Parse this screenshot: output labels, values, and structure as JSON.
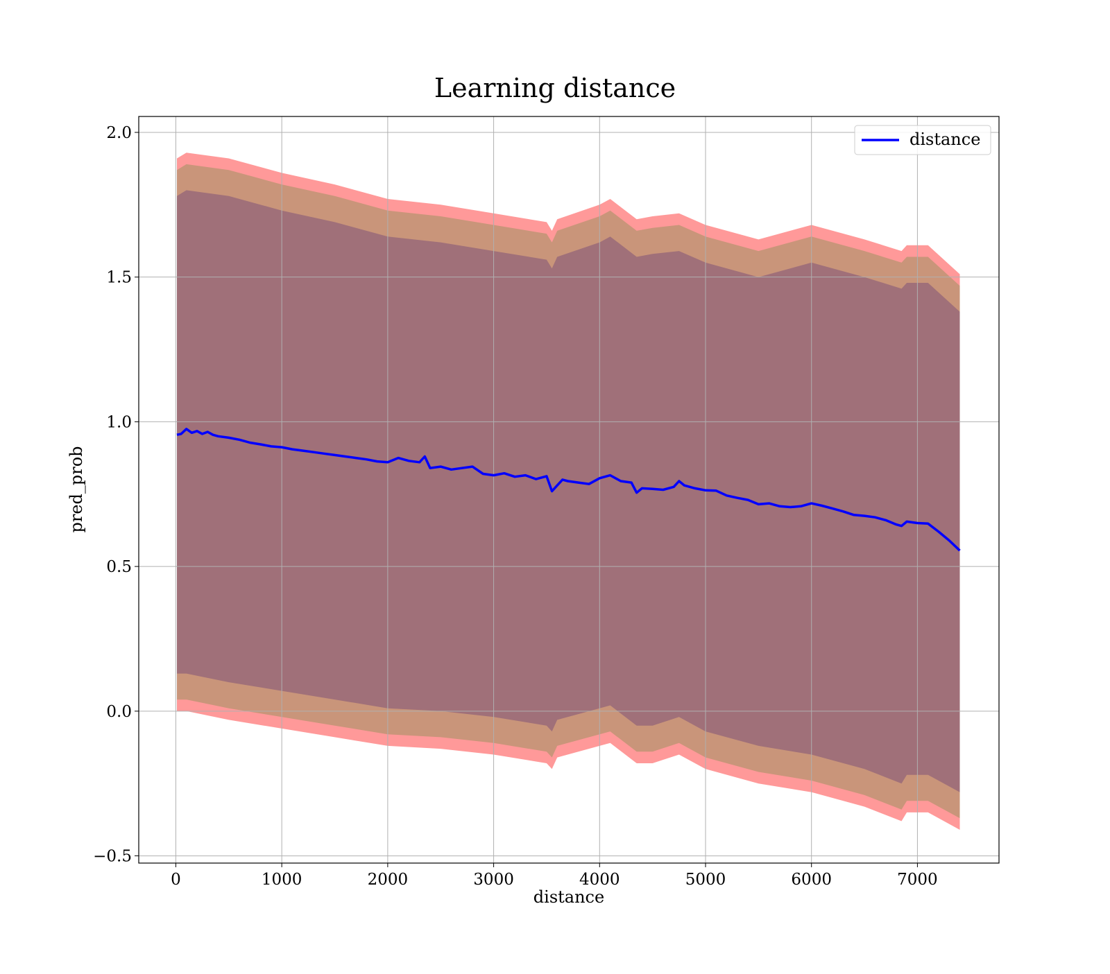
{
  "chart_data": {
    "type": "line",
    "title": "Learning distance",
    "xlabel": "distance",
    "ylabel": "pred_prob",
    "xlim": [
      -350,
      7770
    ],
    "ylim": [
      -0.525,
      2.055
    ],
    "x_ticks": [
      0,
      1000,
      2000,
      3000,
      4000,
      5000,
      6000,
      7000
    ],
    "y_ticks": [
      -0.5,
      0.0,
      0.5,
      1.0,
      1.5,
      2.0
    ],
    "x_tick_labels": [
      "0",
      "1000",
      "2000",
      "3000",
      "4000",
      "5000",
      "6000",
      "7000"
    ],
    "y_tick_labels": [
      "−0.5",
      "0.0",
      "0.5",
      "1.0",
      "1.5",
      "2.0"
    ],
    "grid": true,
    "legend": {
      "position": "top-right",
      "entries": [
        "distance"
      ]
    },
    "colors": {
      "line": "#0000ff",
      "band_outer": "#ff9999",
      "band_middle": "#c9957a",
      "band_inner": "#a07079"
    },
    "series": [
      {
        "name": "distance",
        "x": [
          10,
          50,
          100,
          150,
          200,
          250,
          300,
          350,
          400,
          500,
          600,
          700,
          800,
          900,
          1000,
          1100,
          1200,
          1300,
          1400,
          1500,
          1600,
          1700,
          1800,
          1900,
          2000,
          2100,
          2200,
          2300,
          2350,
          2400,
          2500,
          2600,
          2700,
          2800,
          2900,
          3000,
          3100,
          3200,
          3300,
          3400,
          3500,
          3550,
          3600,
          3650,
          3700,
          3800,
          3900,
          4000,
          4100,
          4200,
          4300,
          4350,
          4400,
          4500,
          4600,
          4700,
          4750,
          4800,
          4900,
          5000,
          5100,
          5200,
          5300,
          5400,
          5500,
          5600,
          5700,
          5800,
          5900,
          6000,
          6100,
          6200,
          6300,
          6400,
          6500,
          6600,
          6700,
          6800,
          6850,
          6900,
          7000,
          7100,
          7200,
          7300,
          7400
        ],
        "y": [
          0.955,
          0.958,
          0.975,
          0.962,
          0.968,
          0.958,
          0.965,
          0.955,
          0.95,
          0.945,
          0.938,
          0.928,
          0.922,
          0.915,
          0.912,
          0.905,
          0.9,
          0.895,
          0.89,
          0.885,
          0.88,
          0.875,
          0.87,
          0.863,
          0.86,
          0.875,
          0.865,
          0.86,
          0.88,
          0.84,
          0.845,
          0.835,
          0.84,
          0.845,
          0.82,
          0.815,
          0.822,
          0.81,
          0.815,
          0.802,
          0.812,
          0.76,
          0.78,
          0.8,
          0.795,
          0.79,
          0.785,
          0.805,
          0.815,
          0.795,
          0.79,
          0.755,
          0.77,
          0.768,
          0.765,
          0.775,
          0.795,
          0.78,
          0.77,
          0.763,
          0.762,
          0.745,
          0.737,
          0.73,
          0.715,
          0.718,
          0.708,
          0.705,
          0.708,
          0.718,
          0.71,
          0.7,
          0.69,
          0.678,
          0.675,
          0.67,
          0.66,
          0.645,
          0.64,
          0.655,
          0.65,
          0.648,
          0.62,
          0.59,
          0.555
        ]
      },
      {
        "name": "",
        "band": "outer",
        "x": [
          10,
          100,
          500,
          1000,
          1500,
          2000,
          2500,
          3000,
          3500,
          3550,
          3600,
          4000,
          4100,
          4350,
          4500,
          4750,
          5000,
          5500,
          6000,
          6500,
          6850,
          6900,
          7100,
          7400
        ],
        "upper": [
          1.91,
          1.93,
          1.91,
          1.86,
          1.82,
          1.77,
          1.75,
          1.72,
          1.69,
          1.66,
          1.7,
          1.75,
          1.77,
          1.7,
          1.71,
          1.72,
          1.68,
          1.63,
          1.68,
          1.63,
          1.59,
          1.61,
          1.61,
          1.51
        ],
        "lower": [
          0.0,
          0.0,
          -0.03,
          -0.06,
          -0.09,
          -0.12,
          -0.13,
          -0.15,
          -0.18,
          -0.2,
          -0.16,
          -0.12,
          -0.11,
          -0.18,
          -0.18,
          -0.15,
          -0.2,
          -0.25,
          -0.28,
          -0.33,
          -0.38,
          -0.35,
          -0.35,
          -0.41
        ]
      },
      {
        "name": "",
        "band": "middle",
        "x": [
          10,
          100,
          500,
          1000,
          1500,
          2000,
          2500,
          3000,
          3500,
          3550,
          3600,
          4000,
          4100,
          4350,
          4500,
          4750,
          5000,
          5500,
          6000,
          6500,
          6850,
          6900,
          7100,
          7400
        ],
        "upper": [
          1.87,
          1.89,
          1.87,
          1.82,
          1.78,
          1.73,
          1.71,
          1.68,
          1.65,
          1.62,
          1.66,
          1.71,
          1.73,
          1.66,
          1.67,
          1.68,
          1.64,
          1.59,
          1.64,
          1.59,
          1.55,
          1.57,
          1.57,
          1.47
        ],
        "lower": [
          0.04,
          0.04,
          0.01,
          -0.02,
          -0.05,
          -0.08,
          -0.09,
          -0.11,
          -0.14,
          -0.16,
          -0.12,
          -0.08,
          -0.07,
          -0.14,
          -0.14,
          -0.11,
          -0.16,
          -0.21,
          -0.24,
          -0.29,
          -0.34,
          -0.31,
          -0.31,
          -0.37
        ]
      },
      {
        "name": "",
        "band": "inner",
        "x": [
          10,
          100,
          500,
          1000,
          1500,
          2000,
          2500,
          3000,
          3500,
          3550,
          3600,
          4000,
          4100,
          4350,
          4500,
          4750,
          5000,
          5500,
          6000,
          6500,
          6850,
          6900,
          7100,
          7400
        ],
        "upper": [
          1.78,
          1.8,
          1.78,
          1.73,
          1.69,
          1.64,
          1.62,
          1.59,
          1.56,
          1.53,
          1.57,
          1.62,
          1.64,
          1.57,
          1.58,
          1.59,
          1.55,
          1.5,
          1.55,
          1.5,
          1.46,
          1.48,
          1.48,
          1.38
        ],
        "lower": [
          0.13,
          0.13,
          0.1,
          0.07,
          0.04,
          0.01,
          0.0,
          -0.02,
          -0.05,
          -0.07,
          -0.03,
          0.01,
          0.02,
          -0.05,
          -0.05,
          -0.02,
          -0.07,
          -0.12,
          -0.15,
          -0.2,
          -0.25,
          -0.22,
          -0.22,
          -0.28
        ]
      }
    ]
  }
}
